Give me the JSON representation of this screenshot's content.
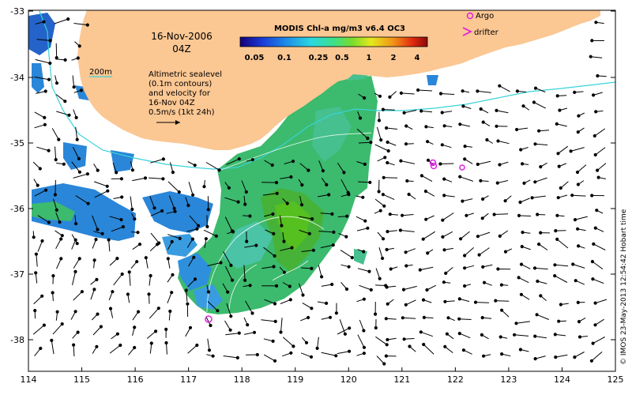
{
  "map": {
    "date": "16-Nov-2006",
    "time": "04Z",
    "colorbar": {
      "title": "MODIS Chl-a mg/m3 v6.4 OC3",
      "ticks": [
        "0.05",
        "0.1",
        "0.25",
        "0.5",
        "1",
        "2",
        "4"
      ]
    },
    "depth_label": "200m",
    "sealevel_note": [
      "Altimetric sealevel",
      "(0.1m contours)",
      "and velocity for",
      "16-Nov 04Z",
      "0.5m/s (1kt 24h)"
    ],
    "legend": {
      "argo": "Argo",
      "drifter": "drifter"
    },
    "credit": "© IMOS 23-May-2013 12:54:42 Hobart time",
    "axes": {
      "x_ticks": [
        "114",
        "115",
        "116",
        "117",
        "118",
        "119",
        "120",
        "121",
        "122",
        "123",
        "124",
        "125"
      ],
      "y_ticks": [
        "-33",
        "-34",
        "-35",
        "-36",
        "-37",
        "-38"
      ]
    },
    "colors": {
      "land": "#fbc793",
      "shelf_contour": "#38d3d8",
      "chl_low": "#1e64d6",
      "chl_mid": "#3cba6e",
      "chl_high": "#55c020",
      "argo": "#e020e0"
    }
  }
}
